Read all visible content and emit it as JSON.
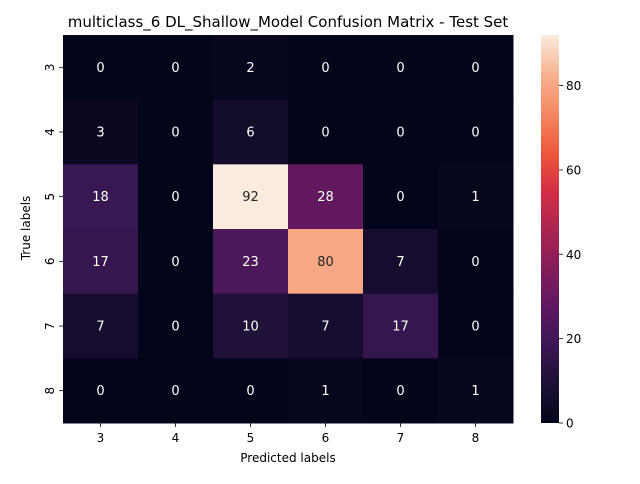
{
  "chart_data": {
    "type": "heatmap",
    "title": "multiclass_6 DL_Shallow_Model Confusion Matrix - Test Set",
    "xlabel": "Predicted labels",
    "ylabel": "True labels",
    "x_categories": [
      "3",
      "4",
      "5",
      "6",
      "7",
      "8"
    ],
    "y_categories": [
      "3",
      "4",
      "5",
      "6",
      "7",
      "8"
    ],
    "values": [
      [
        0,
        0,
        2,
        0,
        0,
        0
      ],
      [
        3,
        0,
        6,
        0,
        0,
        0
      ],
      [
        18,
        0,
        92,
        28,
        0,
        1
      ],
      [
        17,
        0,
        23,
        80,
        7,
        0
      ],
      [
        7,
        0,
        10,
        7,
        17,
        0
      ],
      [
        0,
        0,
        0,
        1,
        0,
        1
      ]
    ],
    "colorbar": {
      "min": 0,
      "max": 92,
      "ticks": [
        0,
        20,
        40,
        60,
        80
      ],
      "colormap": "rocket"
    },
    "annotations": "cell values",
    "grid": false,
    "legend": "colorbar-right"
  }
}
